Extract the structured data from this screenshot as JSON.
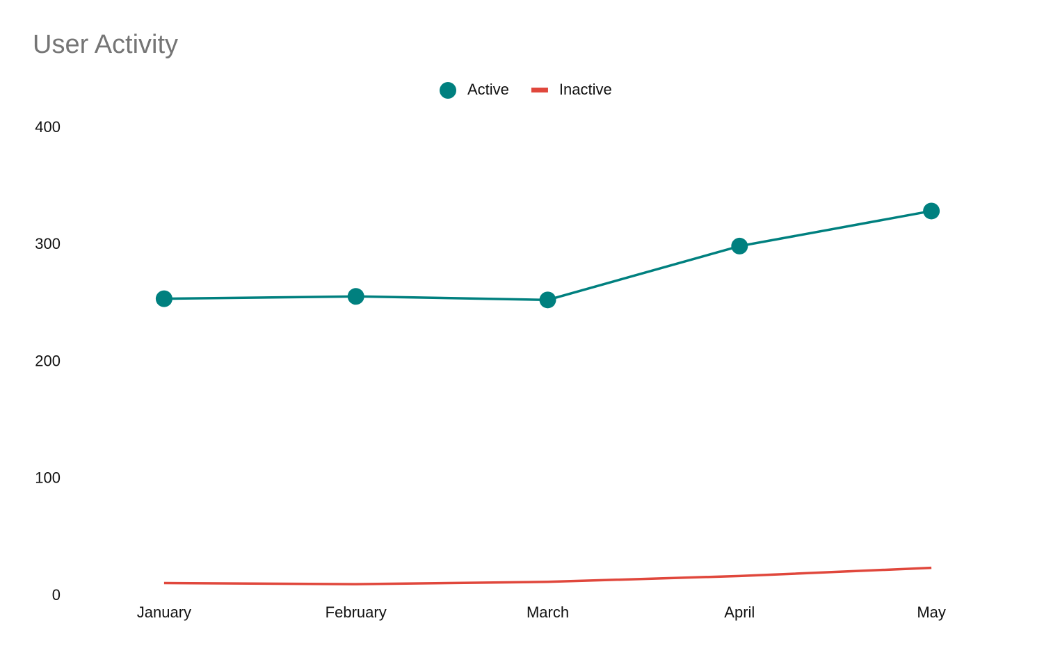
{
  "chart_data": {
    "type": "line",
    "title": "User Activity",
    "categories": [
      "January",
      "February",
      "March",
      "April",
      "May"
    ],
    "series": [
      {
        "name": "Active",
        "color": "#00807f",
        "marker": "circle",
        "values": [
          254,
          256,
          253,
          299,
          329
        ]
      },
      {
        "name": "Inactive",
        "color": "#e0473c",
        "marker": "none",
        "values": [
          11,
          10,
          12,
          17,
          24
        ]
      }
    ],
    "ylim": [
      0,
      400
    ],
    "yticks": [
      0,
      100,
      200,
      300,
      400
    ],
    "grid": false,
    "legend": "top"
  }
}
